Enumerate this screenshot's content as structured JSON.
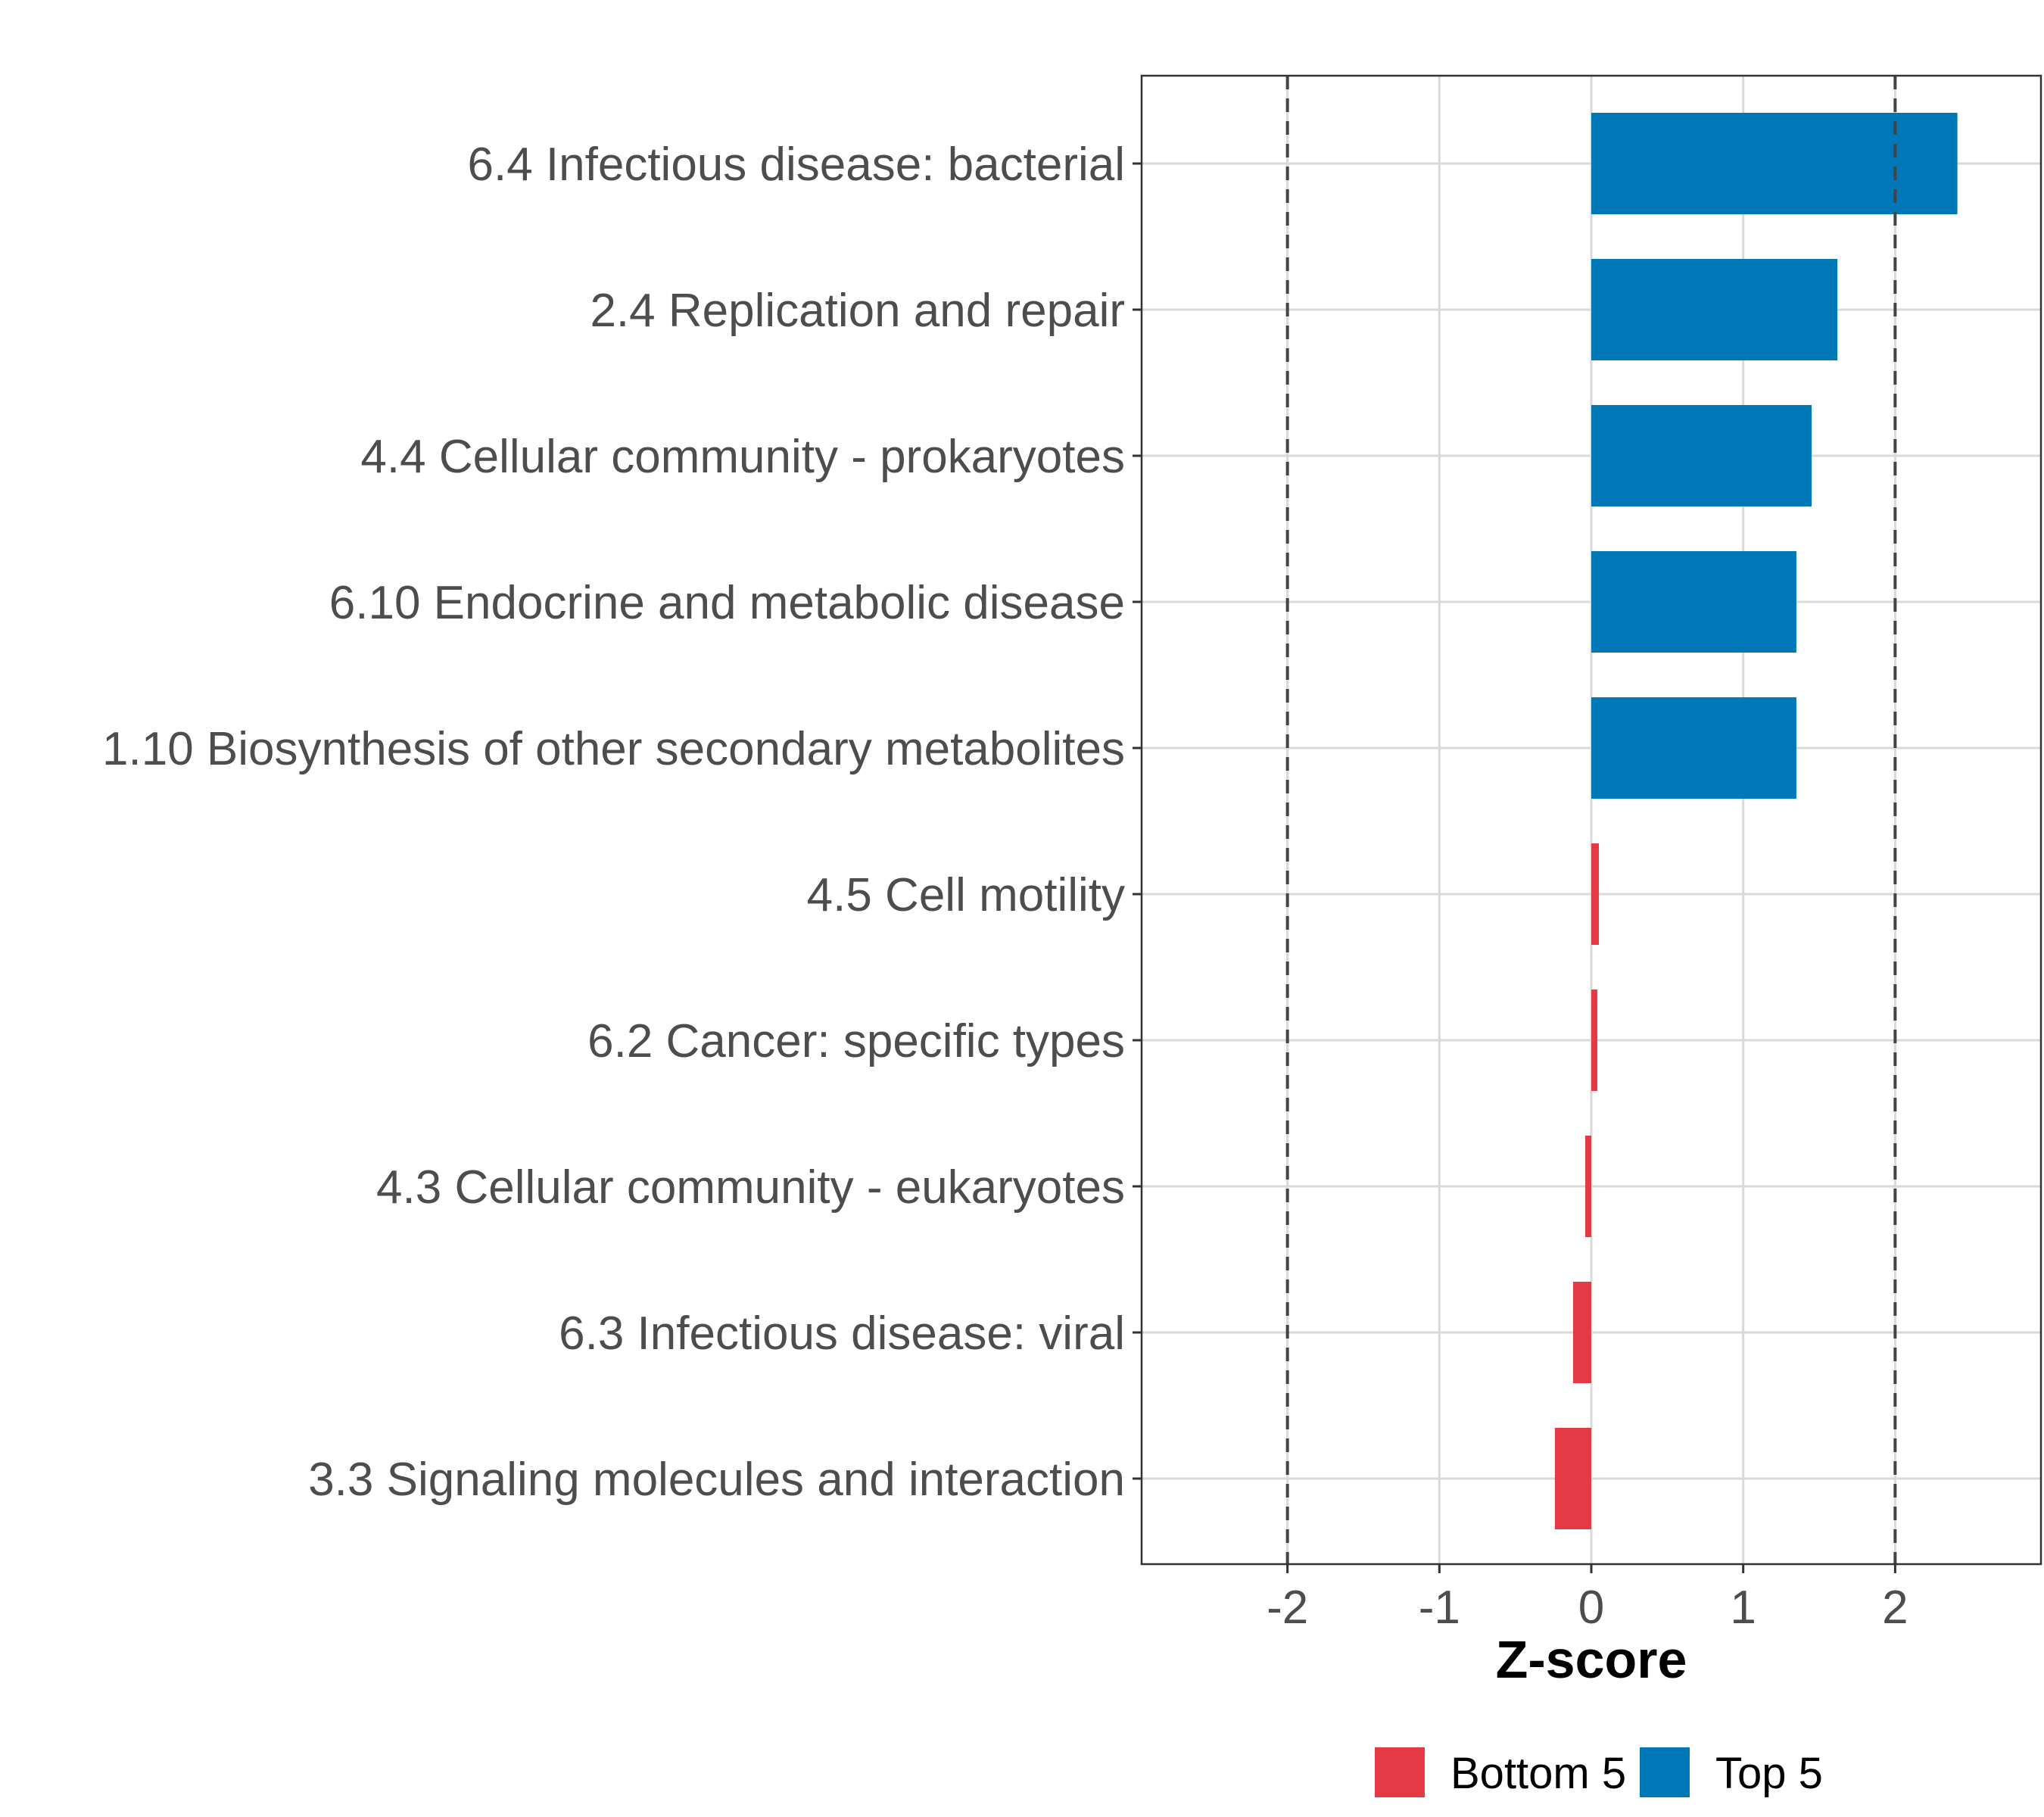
{
  "chart_data": {
    "type": "bar",
    "orientation": "horizontal",
    "categories": [
      "6.4 Infectious disease: bacterial",
      "2.4 Replication and repair",
      "4.4 Cellular community - prokaryotes",
      "6.10 Endocrine and metabolic disease",
      "1.10 Biosynthesis of other secondary metabolites",
      "4.5 Cell motility",
      "6.2 Cancer: specific types",
      "4.3 Cellular community - eukaryotes",
      "6.3 Infectious disease: viral",
      "3.3 Signaling molecules and interaction"
    ],
    "values": [
      2.41,
      1.62,
      1.45,
      1.35,
      1.35,
      0.05,
      0.04,
      -0.04,
      -0.12,
      -0.24
    ],
    "groups": [
      "Top 5",
      "Top 5",
      "Top 5",
      "Top 5",
      "Top 5",
      "Bottom 5",
      "Bottom 5",
      "Bottom 5",
      "Bottom 5",
      "Bottom 5"
    ],
    "xlabel": "Z-score",
    "ylabel": "",
    "xlim": [
      -2.96,
      2.96
    ],
    "xticks": [
      -2,
      -1,
      0,
      1,
      2
    ],
    "xtick_labels": [
      "-2",
      "-1",
      "0",
      "1",
      "2"
    ],
    "reference_lines": [
      -2,
      2
    ],
    "grid": true,
    "legend": {
      "position": "bottom",
      "entries": [
        {
          "label": "Bottom 5",
          "color": "#e63946"
        },
        {
          "label": "Top 5",
          "color": "#0077b6"
        }
      ]
    },
    "colors": {
      "Top 5": "#0077b6",
      "Bottom 5": "#e63946"
    }
  }
}
